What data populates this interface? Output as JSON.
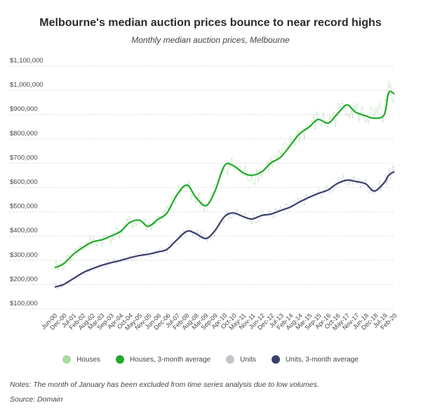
{
  "chart_data": {
    "type": "line",
    "title": "Melbourne's median auction prices bounce to near record highs",
    "subtitle": "Monthly median auction prices, Melbourne",
    "notes": "Notes: The month of January has been excluded from time series analysis due to low volumes.",
    "source": "Source: Domain",
    "ylim": [
      100000,
      1100000
    ],
    "y_ticks": [
      "$1,100,000",
      "$1,000,000",
      "$900,000",
      "$800,000",
      "$700,000",
      "$600,000",
      "$500,000",
      "$400,000",
      "$300,000",
      "$200,000",
      "$100,000"
    ],
    "x_ticks": [
      "Jun-00",
      "Dec-00",
      "Jul-01",
      "Feb-02",
      "Aug-02",
      "Mar-03",
      "Sep-03",
      "Apr-04",
      "Oct-04",
      "May-05",
      "Nov-05",
      "Jun-06",
      "Dec-06",
      "Jul-07",
      "Feb-08",
      "Aug-08",
      "Mar-09",
      "Sep-09",
      "Apr-10",
      "Oct-10",
      "May-11",
      "Nov-11",
      "Jun-12",
      "Dec-12",
      "Jul-13",
      "Feb-14",
      "Aug-14",
      "Mar-15",
      "Sep-15",
      "Apr-16",
      "Oct-16",
      "May-17",
      "Nov-17",
      "Jun-18",
      "Dec-18",
      "Jul-19",
      "Feb-20"
    ],
    "grid": true,
    "legend_position": "bottom",
    "colors": {
      "houses": "#a8dba0",
      "houses_avg": "#22a82a",
      "units": "#c2c4cc",
      "units_avg": "#3a3f6e"
    },
    "series": [
      {
        "name": "Houses, 3-month average",
        "key": "houses_avg",
        "x": [
          2000.42,
          2000.92,
          2001.5,
          2002.08,
          2002.58,
          2003.17,
          2003.67,
          2004.25,
          2004.75,
          2005.33,
          2005.83,
          2006.42,
          2006.92,
          2007.5,
          2008.08,
          2008.58,
          2009.17,
          2009.67,
          2010.25,
          2010.75,
          2011.33,
          2011.83,
          2012.42,
          2012.92,
          2013.5,
          2014.08,
          2014.58,
          2015.17,
          2015.67,
          2016.25,
          2016.75,
          2017.33,
          2017.83,
          2018.42,
          2018.92,
          2019.5,
          2019.75,
          2020.08
        ],
        "values": [
          270000,
          285000,
          325000,
          355000,
          375000,
          385000,
          400000,
          420000,
          455000,
          465000,
          440000,
          470000,
          495000,
          570000,
          610000,
          560000,
          525000,
          580000,
          690000,
          690000,
          660000,
          650000,
          665000,
          700000,
          725000,
          775000,
          820000,
          850000,
          880000,
          865000,
          900000,
          940000,
          910000,
          895000,
          885000,
          900000,
          990000,
          985000
        ]
      },
      {
        "name": "Units, 3-month average",
        "key": "units_avg",
        "x": [
          2000.42,
          2000.92,
          2001.5,
          2002.08,
          2002.58,
          2003.17,
          2003.67,
          2004.25,
          2004.75,
          2005.33,
          2005.83,
          2006.42,
          2006.92,
          2007.5,
          2008.08,
          2008.58,
          2009.17,
          2009.67,
          2010.25,
          2010.75,
          2011.33,
          2011.83,
          2012.42,
          2012.92,
          2013.5,
          2014.08,
          2014.58,
          2015.17,
          2015.67,
          2016.25,
          2016.75,
          2017.33,
          2017.83,
          2018.42,
          2018.92,
          2019.5,
          2019.75,
          2020.08
        ],
        "values": [
          190000,
          200000,
          225000,
          250000,
          265000,
          280000,
          290000,
          300000,
          310000,
          320000,
          325000,
          335000,
          345000,
          385000,
          420000,
          410000,
          390000,
          420000,
          480000,
          495000,
          480000,
          470000,
          485000,
          490000,
          505000,
          520000,
          540000,
          560000,
          575000,
          590000,
          615000,
          630000,
          625000,
          615000,
          585000,
          620000,
          650000,
          665000
        ]
      }
    ]
  },
  "legend": [
    {
      "label": "Houses",
      "key": "houses"
    },
    {
      "label": "Houses, 3-month average",
      "key": "houses_avg"
    },
    {
      "label": "Units",
      "key": "units"
    },
    {
      "label": "Units, 3-month average",
      "key": "units_avg"
    }
  ]
}
